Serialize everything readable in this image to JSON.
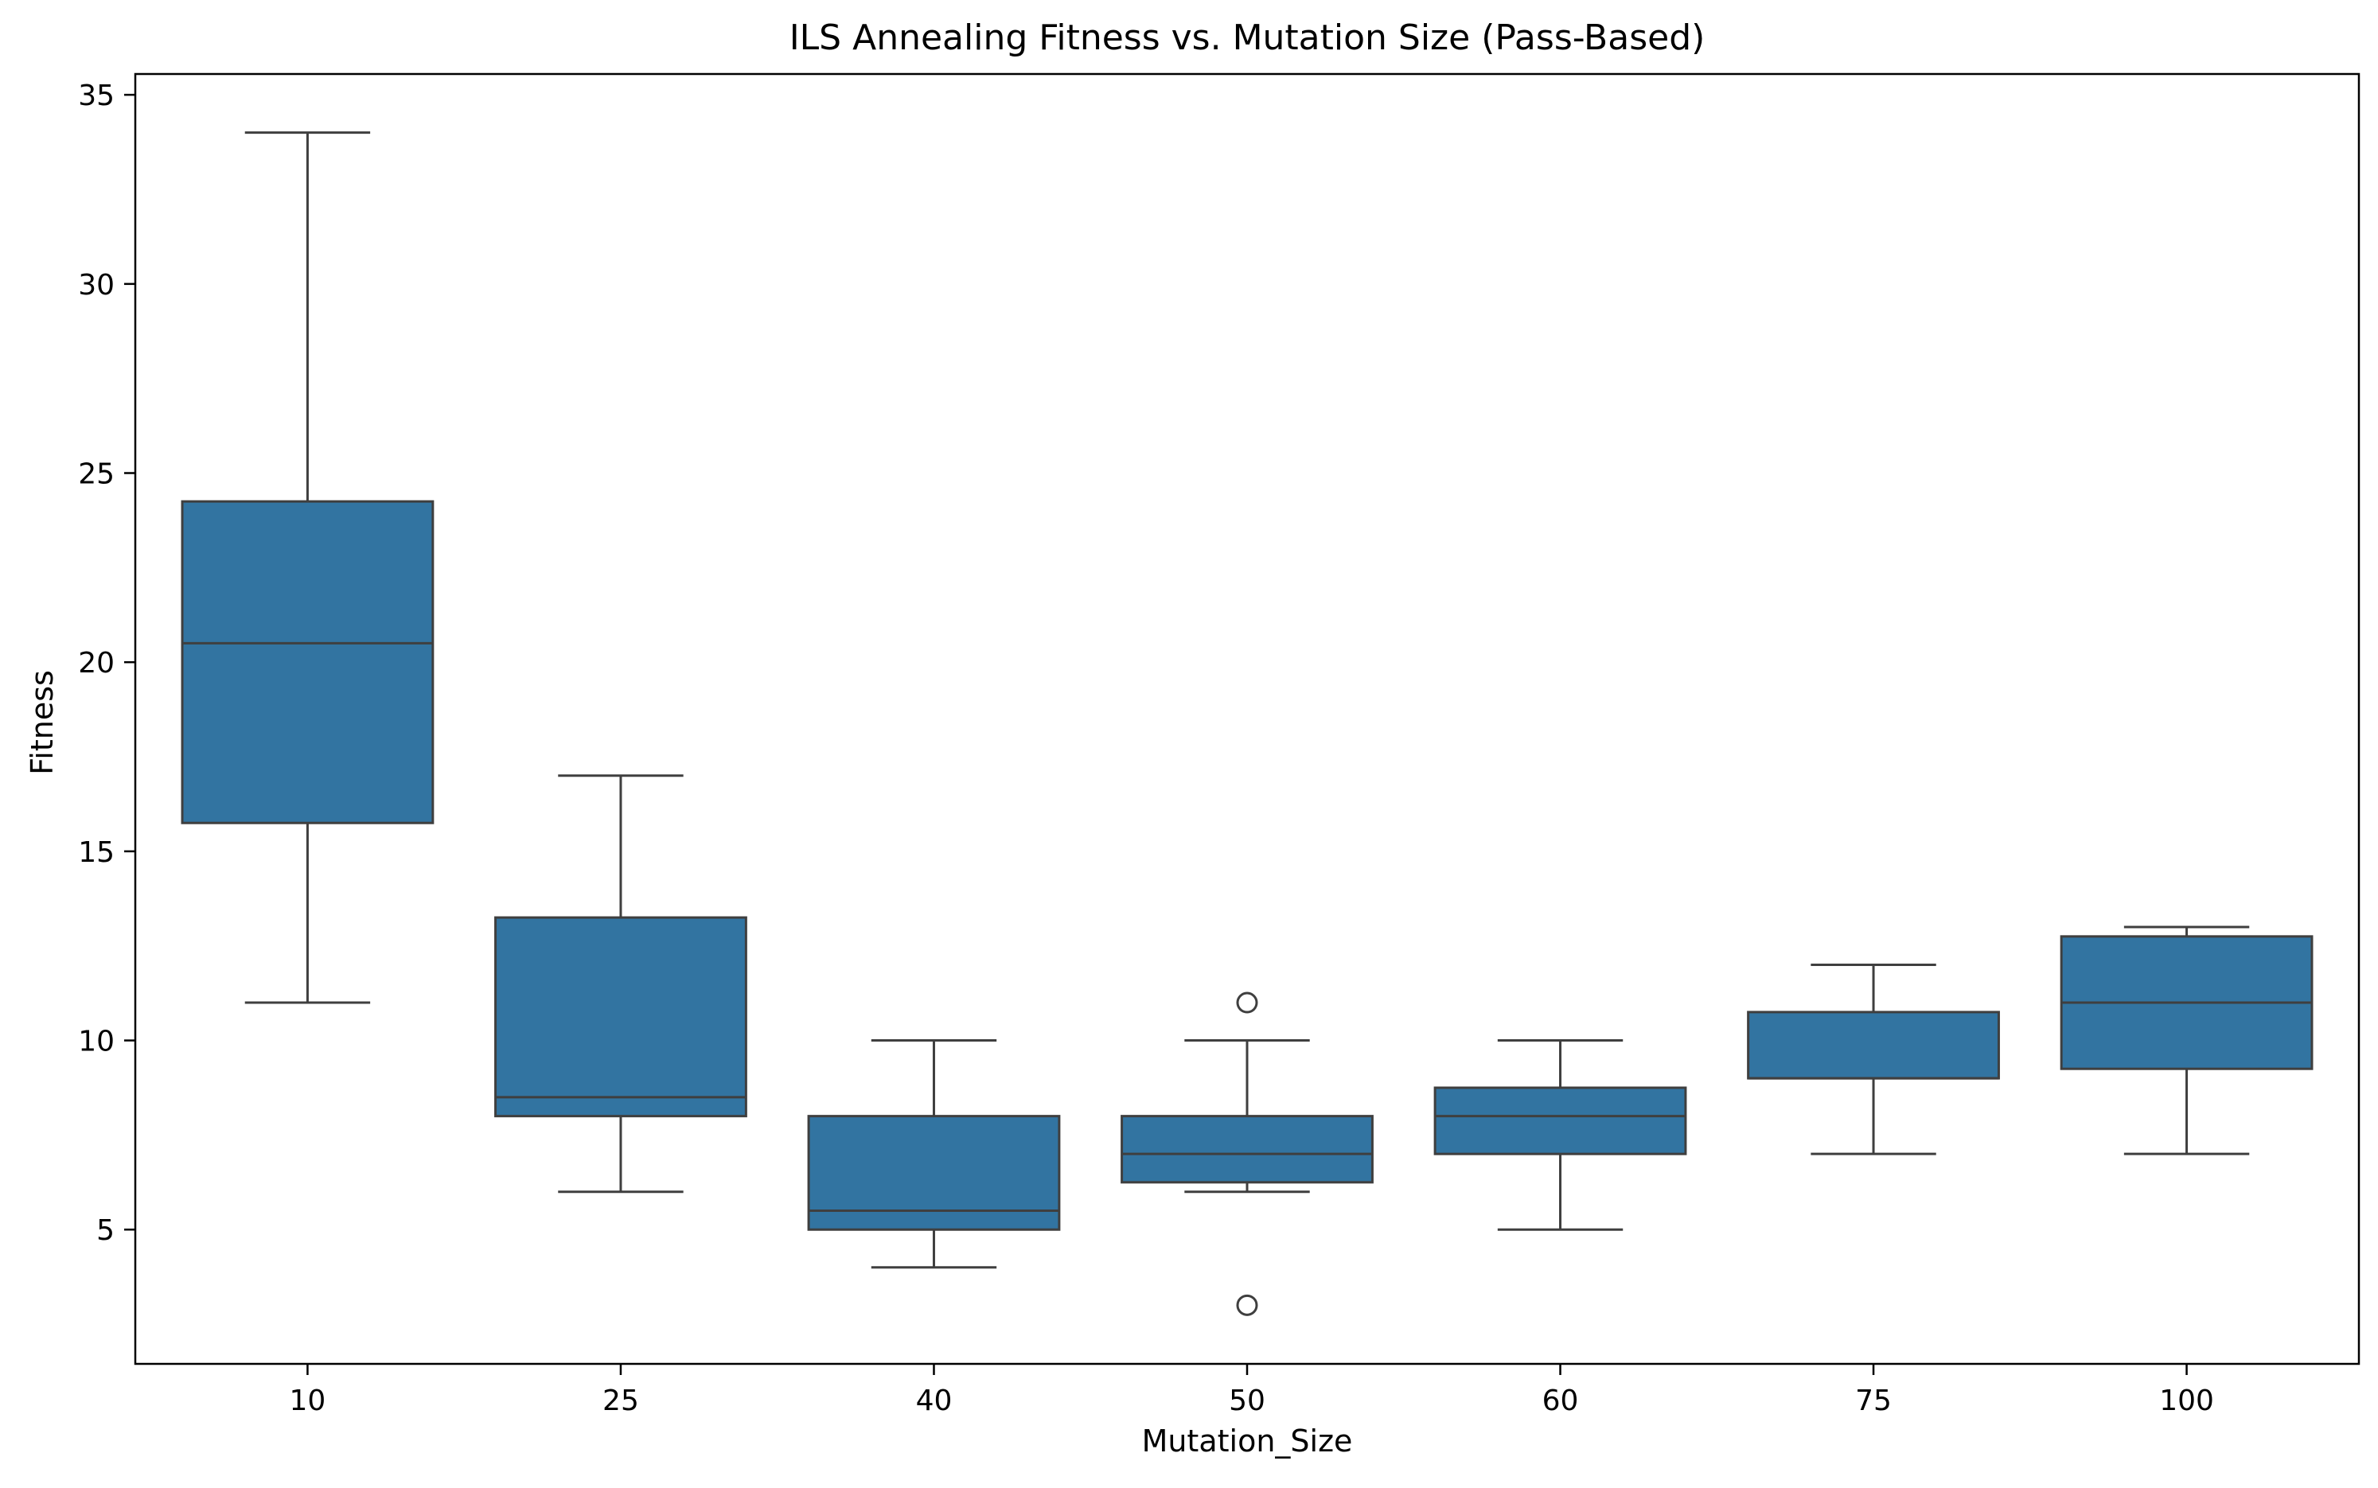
{
  "chart_data": {
    "type": "box",
    "title": "ILS Annealing Fitness vs. Mutation Size (Pass-Based)",
    "xlabel": "Mutation_Size",
    "ylabel": "Fitness",
    "ylim": [
      1.45,
      35.55
    ],
    "y_ticks": [
      5,
      10,
      15,
      20,
      25,
      30,
      35
    ],
    "grid": false,
    "legend": "none",
    "categories": [
      "10",
      "25",
      "40",
      "50",
      "60",
      "75",
      "100"
    ],
    "boxes": [
      {
        "category": "10",
        "whisker_low": 11,
        "q1": 15.75,
        "median": 20.5,
        "q3": 24.25,
        "whisker_high": 34,
        "outliers": []
      },
      {
        "category": "25",
        "whisker_low": 6,
        "q1": 8,
        "median": 8.5,
        "q3": 13.25,
        "whisker_high": 17,
        "outliers": []
      },
      {
        "category": "40",
        "whisker_low": 4,
        "q1": 5,
        "median": 5.5,
        "q3": 8,
        "whisker_high": 10,
        "outliers": []
      },
      {
        "category": "50",
        "whisker_low": 6,
        "q1": 6.25,
        "median": 7,
        "q3": 8,
        "whisker_high": 10,
        "outliers": [
          11,
          3
        ]
      },
      {
        "category": "60",
        "whisker_low": 5,
        "q1": 7,
        "median": 8,
        "q3": 8.75,
        "whisker_high": 10,
        "outliers": []
      },
      {
        "category": "75",
        "whisker_low": 7,
        "q1": 9,
        "median": 9,
        "q3": 10.75,
        "whisker_high": 12,
        "outliers": []
      },
      {
        "category": "100",
        "whisker_low": 7,
        "q1": 9.25,
        "median": 11,
        "q3": 12.75,
        "whisker_high": 13,
        "outliers": []
      }
    ],
    "colors": {
      "box_fill": "#3274a1",
      "box_edge": "#3f3f3f",
      "axis": "#000000"
    }
  }
}
